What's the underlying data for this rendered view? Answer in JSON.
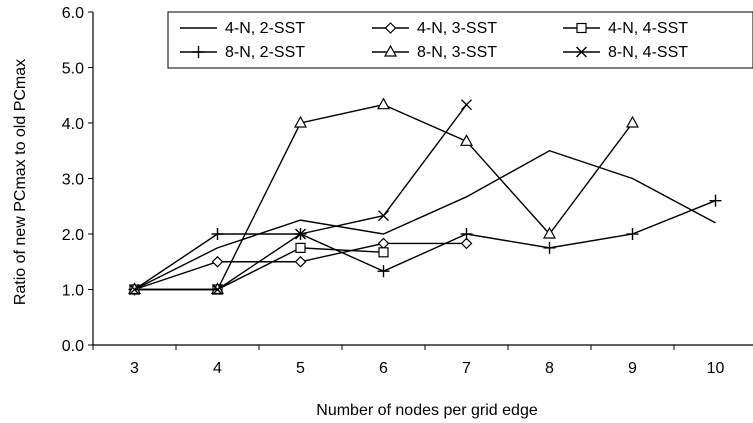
{
  "chart_data": {
    "type": "line",
    "title": "",
    "xlabel": "Number of nodes per grid edge",
    "ylabel": "Ratio of new PCmax to old PCmax",
    "categories": [
      "3",
      "4",
      "5",
      "6",
      "7",
      "8",
      "9",
      "10"
    ],
    "ylim": [
      0,
      6
    ],
    "yticks": [
      "0.0",
      "1.0",
      "2.0",
      "3.0",
      "4.0",
      "5.0",
      "6.0"
    ],
    "grid": false,
    "legend_position": "top-right",
    "series": [
      {
        "name": "4-N, 2-SST",
        "marker": "none",
        "values": [
          1.0,
          1.75,
          2.25,
          2.0,
          2.67,
          3.5,
          3.0,
          2.2
        ]
      },
      {
        "name": "4-N, 3-SST",
        "marker": "diamond",
        "values": [
          1.0,
          1.5,
          1.5,
          1.83,
          1.83,
          null,
          null,
          null
        ]
      },
      {
        "name": "4-N, 4-SST",
        "marker": "square",
        "values": [
          1.0,
          1.0,
          1.75,
          1.67,
          null,
          null,
          null,
          null
        ]
      },
      {
        "name": "8-N, 2-SST",
        "marker": "plus",
        "values": [
          1.0,
          2.0,
          2.0,
          1.33,
          2.0,
          1.75,
          2.0,
          2.6
        ]
      },
      {
        "name": "8-N, 3-SST",
        "marker": "triangle",
        "values": [
          1.0,
          1.0,
          4.0,
          4.33,
          3.67,
          2.0,
          4.0,
          null
        ]
      },
      {
        "name": "8-N, 4-SST",
        "marker": "x",
        "values": [
          1.0,
          1.0,
          2.0,
          2.33,
          4.33,
          null,
          null,
          null
        ]
      }
    ]
  }
}
